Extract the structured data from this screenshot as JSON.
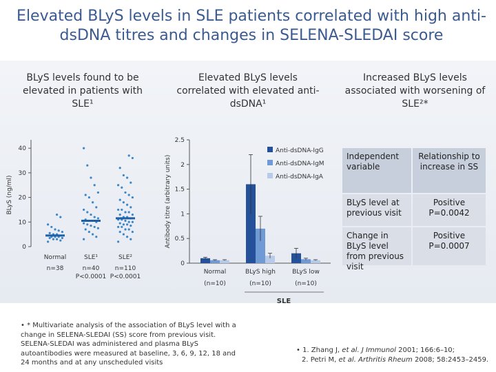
{
  "title": "Elevated BLyS levels in SLE patients correlated with high anti-dsDNA titres and changes in SELENA-SLEDAI score",
  "column_headers": [
    "BLyS levels found to be elevated in patients with SLE¹",
    "Elevated BLyS levels correlated with elevated anti-dsDNA¹",
    "Increased BLyS levels associated with worsening of SLE²*"
  ],
  "charts": [
    {
      "type": "dotplot",
      "y_label": "BLyS (ng/ml)",
      "ylim": [
        0,
        42
      ],
      "yticks": [
        0,
        10,
        20,
        30,
        40
      ],
      "color": "#3d87c9",
      "categories": [
        "Normal",
        "SLE¹",
        "SLE²"
      ],
      "n_labels": [
        "n=38",
        "n=40",
        "n=110"
      ],
      "p_labels": [
        null,
        "P<0.0001",
        "P<0.0001"
      ],
      "medians": [
        4.5,
        10.5,
        11.5
      ],
      "groups": [
        [
          2,
          2.5,
          3,
          3,
          3.5,
          3.5,
          4,
          4,
          4,
          4.5,
          4.5,
          5,
          5,
          5.5,
          6,
          6.5,
          7,
          8,
          9,
          12,
          13
        ],
        [
          3,
          4,
          5,
          6,
          7,
          7.5,
          8,
          8.5,
          9,
          9.5,
          10,
          10.5,
          10.5,
          11,
          11.5,
          12,
          13,
          14,
          15,
          16,
          18,
          20,
          21,
          22,
          25,
          28,
          33,
          40
        ],
        [
          2,
          3,
          4,
          5,
          6,
          6,
          7,
          7,
          8,
          8,
          8.5,
          9,
          9,
          9.5,
          10,
          10,
          10.5,
          11,
          11,
          11.5,
          12,
          12,
          13,
          13,
          14,
          14,
          15,
          15,
          16,
          17,
          18,
          19,
          20,
          21,
          22,
          24,
          25,
          26,
          28,
          29,
          32,
          36,
          37
        ]
      ]
    },
    {
      "type": "bar",
      "y_label": "Antibody titre (arbitrary units)",
      "ylim": [
        0,
        2.5
      ],
      "yticks": [
        0,
        0.5,
        1,
        1.5,
        2,
        2.5
      ],
      "categories": [
        "Normal",
        "BLyS high",
        "BLyS low"
      ],
      "n_labels": [
        "(n=10)",
        "(n=10)",
        "(n=10)"
      ],
      "x_group_label": "SLE",
      "series": [
        {
          "name": "Anti-dsDNA-IgG",
          "color": "#24519a",
          "values": [
            0.1,
            1.6,
            0.2
          ],
          "errors": [
            0.02,
            0.6,
            0.1
          ]
        },
        {
          "name": "Anti-dsDNA-IgM",
          "color": "#6f9ad4",
          "values": [
            0.06,
            0.7,
            0.08
          ],
          "errors": [
            0.01,
            0.25,
            0.02
          ]
        },
        {
          "name": "Anti-dsDNA-IgA",
          "color": "#b7cbe8",
          "values": [
            0.06,
            0.15,
            0.06
          ],
          "errors": [
            0.01,
            0.05,
            0.01
          ]
        }
      ]
    }
  ],
  "table": {
    "header": [
      "Independent variable",
      "Relationship to increase in SS"
    ],
    "rows": [
      [
        "BLyS level at previous visit",
        "Positive P=0.0042"
      ],
      [
        "Change in BLyS level from previous visit",
        "Positive P=0.0007"
      ]
    ]
  },
  "footnote": "* Multivariate analysis of the association of BLyS level with a change in SELENA-SLEDAI (SS) score from previous visit. SELENA-SLEDAI was administered and plasma BLyS autoantibodies were measured at baseline, 3, 6, 9, 12, 18 and 24 months and at any unscheduled visits",
  "references": [
    [
      "1. Zhang J, ",
      "et al. J Immunol",
      " 2001; 166:6–10;"
    ],
    [
      "2. Petri M, ",
      "et al. Arthritis Rheum",
      " 2008; 58:2453–2459."
    ]
  ]
}
